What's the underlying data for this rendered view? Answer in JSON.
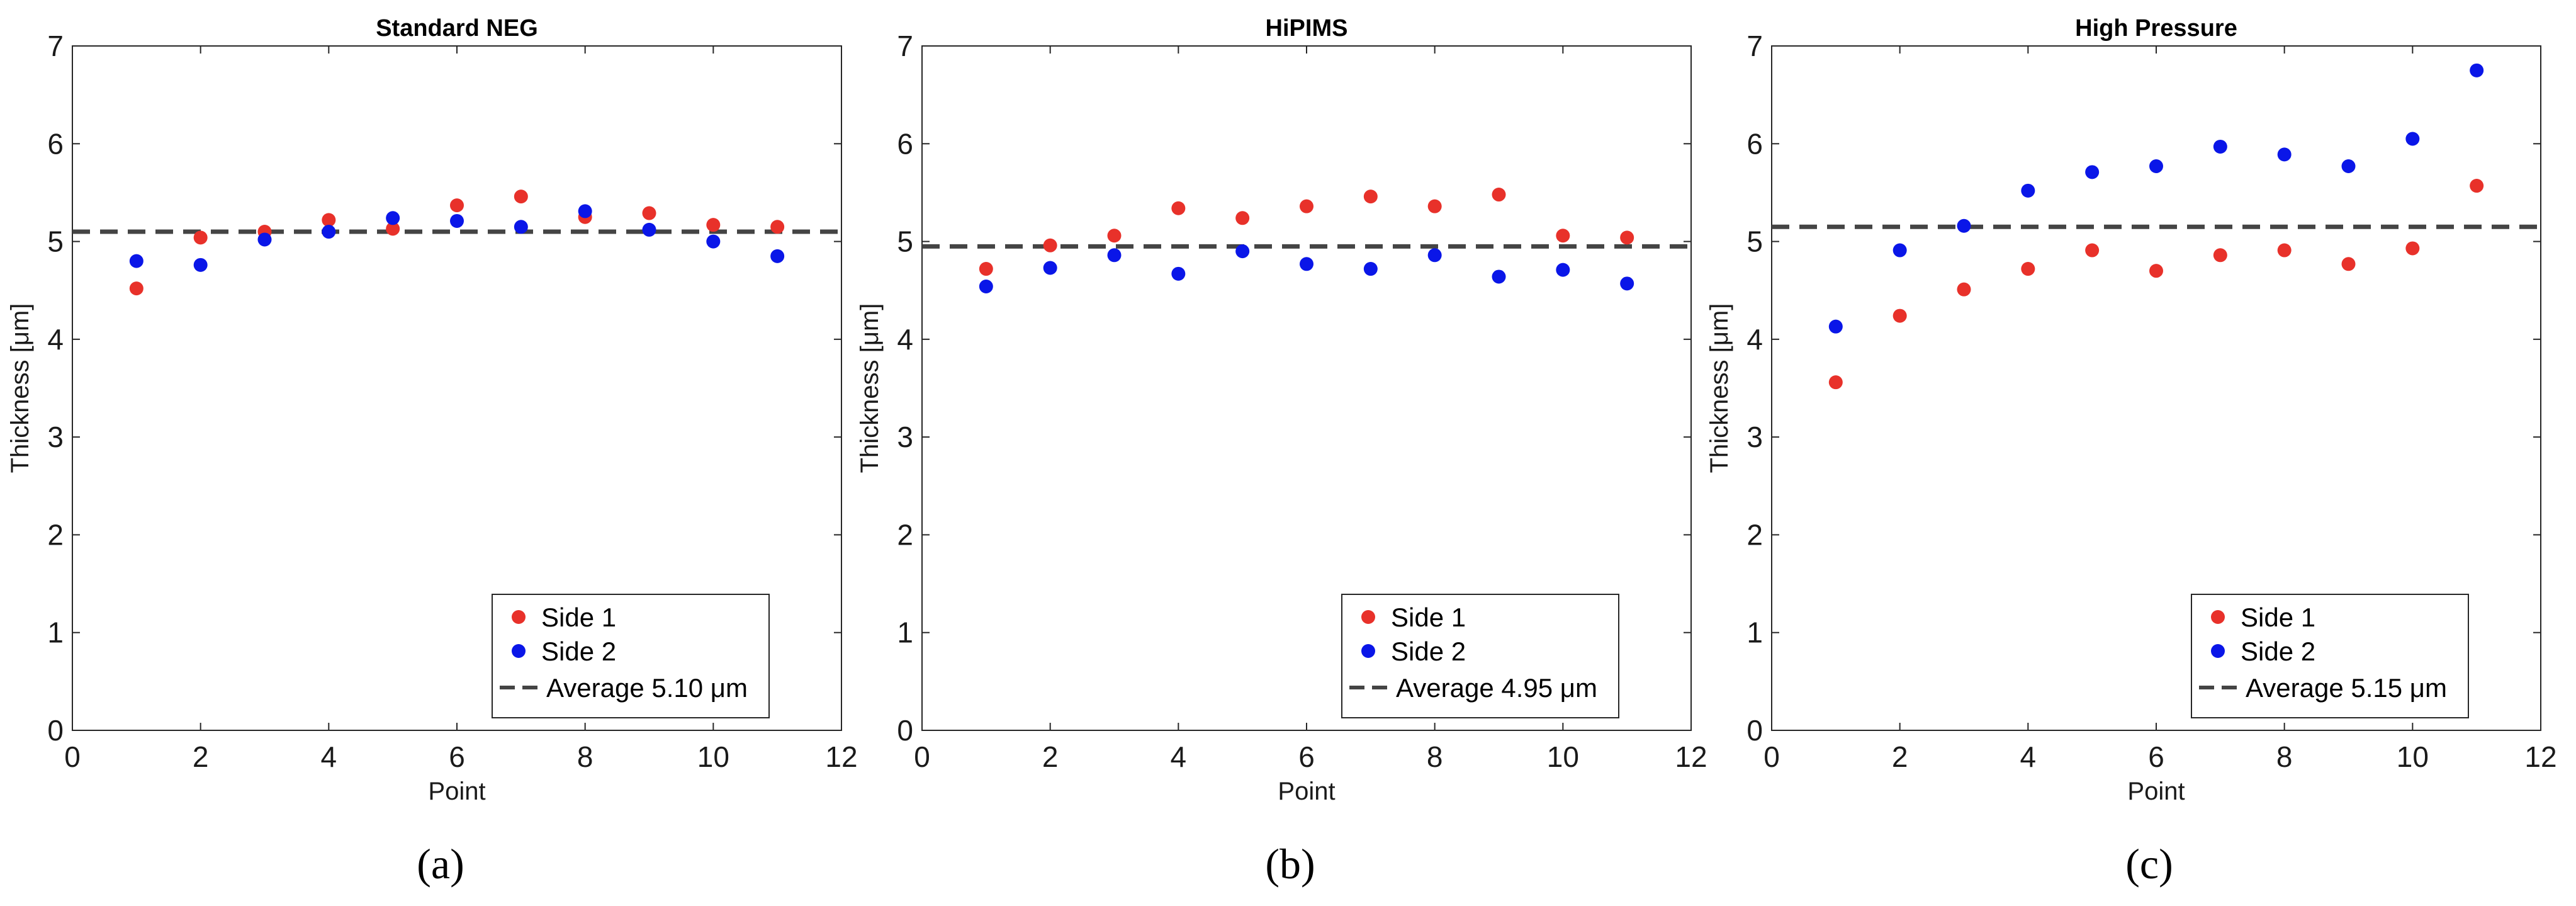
{
  "chart_data": [
    {
      "type": "scatter",
      "panel_label": "(a)",
      "title": "Standard NEG",
      "xlabel": "Point",
      "ylabel": "Thickness [μm]",
      "xlim": [
        0,
        12
      ],
      "ylim": [
        0,
        7
      ],
      "xticks": [
        "0",
        "2",
        "4",
        "6",
        "8",
        "10",
        "12"
      ],
      "yticks": [
        "0",
        "1",
        "2",
        "3",
        "4",
        "5",
        "6",
        "7"
      ],
      "series": [
        {
          "name": "Side 1",
          "color": "#e8312a",
          "x": [
            1,
            2,
            3,
            4,
            5,
            6,
            7,
            8,
            9,
            10,
            11
          ],
          "values": [
            4.52,
            5.04,
            5.1,
            5.22,
            5.13,
            5.37,
            5.46,
            5.25,
            5.29,
            5.17,
            5.15
          ]
        },
        {
          "name": "Side 2",
          "color": "#0a16e8",
          "x": [
            1,
            2,
            3,
            4,
            5,
            6,
            7,
            8,
            9,
            10,
            11
          ],
          "values": [
            4.8,
            4.76,
            5.02,
            5.1,
            5.24,
            5.21,
            5.15,
            5.31,
            5.12,
            5.0,
            4.85
          ]
        }
      ],
      "average": {
        "value": 5.1,
        "label": "Average 5.10 μm",
        "color": "#444444"
      },
      "legend": [
        "Side 1",
        "Side 2",
        "Average 5.10 μm"
      ],
      "legend_position": "bottom-right"
    },
    {
      "type": "scatter",
      "panel_label": "(b)",
      "title": "HiPIMS",
      "xlabel": "Point",
      "ylabel": "Thickness [μm]",
      "xlim": [
        0,
        12
      ],
      "ylim": [
        0,
        7
      ],
      "xticks": [
        "0",
        "2",
        "4",
        "6",
        "8",
        "10",
        "12"
      ],
      "yticks": [
        "0",
        "1",
        "2",
        "3",
        "4",
        "5",
        "6",
        "7"
      ],
      "series": [
        {
          "name": "Side 1",
          "color": "#e8312a",
          "x": [
            1,
            2,
            3,
            4,
            5,
            6,
            7,
            8,
            9,
            10,
            11
          ],
          "values": [
            4.72,
            4.96,
            5.06,
            5.34,
            5.24,
            5.36,
            5.46,
            5.36,
            5.48,
            5.06,
            5.04
          ]
        },
        {
          "name": "Side 2",
          "color": "#0a16e8",
          "x": [
            1,
            2,
            3,
            4,
            5,
            6,
            7,
            8,
            9,
            10,
            11
          ],
          "values": [
            4.54,
            4.73,
            4.86,
            4.67,
            4.9,
            4.77,
            4.72,
            4.86,
            4.64,
            4.71,
            4.57
          ]
        }
      ],
      "average": {
        "value": 4.95,
        "label": "Average 4.95 μm",
        "color": "#444444"
      },
      "legend": [
        "Side 1",
        "Side 2",
        "Average 4.95 μm"
      ],
      "legend_position": "bottom-right"
    },
    {
      "type": "scatter",
      "panel_label": "(c)",
      "title": "High Pressure",
      "xlabel": "Point",
      "ylabel": "Thickness [μm]",
      "xlim": [
        0,
        12
      ],
      "ylim": [
        0,
        7
      ],
      "xticks": [
        "0",
        "2",
        "4",
        "6",
        "8",
        "10",
        "12"
      ],
      "yticks": [
        "0",
        "1",
        "2",
        "3",
        "4",
        "5",
        "6",
        "7"
      ],
      "series": [
        {
          "name": "Side 1",
          "color": "#e8312a",
          "x": [
            1,
            2,
            3,
            4,
            5,
            6,
            7,
            8,
            9,
            10,
            11
          ],
          "values": [
            3.56,
            4.24,
            4.51,
            4.72,
            4.91,
            4.7,
            4.86,
            4.91,
            4.77,
            4.93,
            5.57
          ]
        },
        {
          "name": "Side 2",
          "color": "#0a16e8",
          "x": [
            1,
            2,
            3,
            4,
            5,
            6,
            7,
            8,
            9,
            10,
            11
          ],
          "values": [
            4.13,
            4.91,
            5.16,
            5.52,
            5.71,
            5.77,
            5.97,
            5.89,
            5.77,
            6.05,
            6.75
          ]
        }
      ],
      "average": {
        "value": 5.15,
        "label": "Average 5.15 μm",
        "color": "#444444"
      },
      "legend": [
        "Side 1",
        "Side 2",
        "Average 5.15 μm"
      ],
      "legend_position": "bottom-right"
    }
  ]
}
